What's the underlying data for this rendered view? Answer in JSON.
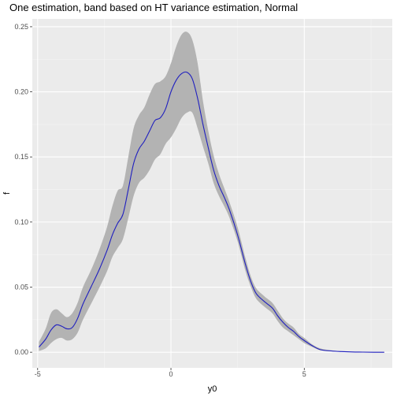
{
  "chart_data": {
    "type": "line",
    "title": "One estimation, band based on HT variance estimation, Normal",
    "xlabel": "y0",
    "ylabel": "f",
    "xlim": [
      -5.2,
      8.3
    ],
    "ylim": [
      -0.012,
      0.256
    ],
    "x_ticks": [
      -5,
      0,
      5
    ],
    "x_tick_labels": [
      "-5",
      "0",
      "5"
    ],
    "y_ticks": [
      0.0,
      0.05,
      0.1,
      0.15,
      0.2,
      0.25
    ],
    "y_tick_labels": [
      "0.00",
      "0.05",
      "0.10",
      "0.15",
      "0.20",
      "0.25"
    ],
    "grid": true,
    "legend": "none",
    "colors": {
      "panel": "#ebebeb",
      "grid_major": "#ffffff",
      "line": "#1f1fbf",
      "band": "#b3b3b3"
    },
    "series": [
      {
        "kind": "line",
        "x": [
          -4.95,
          -4.7,
          -4.5,
          -4.3,
          -4.1,
          -3.9,
          -3.7,
          -3.5,
          -3.3,
          -3.0,
          -2.7,
          -2.4,
          -2.2,
          -2.0,
          -1.8,
          -1.6,
          -1.4,
          -1.2,
          -1.0,
          -0.8,
          -0.6,
          -0.4,
          -0.2,
          0.0,
          0.2,
          0.4,
          0.6,
          0.8,
          1.0,
          1.2,
          1.4,
          1.6,
          1.8,
          2.0,
          2.2,
          2.5,
          2.8,
          3.0,
          3.2,
          3.5,
          3.8,
          4.0,
          4.2,
          4.4,
          4.6,
          4.8,
          5.0,
          5.3,
          5.6,
          6.0,
          6.4,
          6.8,
          7.2,
          7.6,
          8.0
        ],
        "y": [
          0.004,
          0.01,
          0.017,
          0.021,
          0.02,
          0.018,
          0.019,
          0.026,
          0.037,
          0.05,
          0.063,
          0.078,
          0.09,
          0.099,
          0.106,
          0.125,
          0.145,
          0.156,
          0.162,
          0.17,
          0.178,
          0.18,
          0.187,
          0.2,
          0.209,
          0.214,
          0.215,
          0.21,
          0.195,
          0.175,
          0.157,
          0.14,
          0.128,
          0.119,
          0.109,
          0.09,
          0.067,
          0.054,
          0.045,
          0.039,
          0.034,
          0.028,
          0.023,
          0.019,
          0.016,
          0.012,
          0.009,
          0.005,
          0.002,
          0.001,
          0.0005,
          0.0002,
          0.0001,
          0.0,
          0.0
        ]
      },
      {
        "kind": "band",
        "x": [
          -4.95,
          -4.7,
          -4.5,
          -4.3,
          -4.1,
          -3.9,
          -3.7,
          -3.5,
          -3.3,
          -3.0,
          -2.7,
          -2.4,
          -2.2,
          -2.0,
          -1.8,
          -1.6,
          -1.4,
          -1.2,
          -1.0,
          -0.8,
          -0.6,
          -0.4,
          -0.2,
          0.0,
          0.2,
          0.4,
          0.6,
          0.8,
          1.0,
          1.2,
          1.4,
          1.6,
          1.8,
          2.0,
          2.2,
          2.5,
          2.8,
          3.0,
          3.2,
          3.5,
          3.8,
          4.0,
          4.2,
          4.4,
          4.6,
          4.8,
          5.0,
          5.3,
          5.6,
          6.0,
          6.4,
          6.8,
          7.2,
          7.6,
          8.0
        ],
        "lower": [
          0.001,
          0.003,
          0.007,
          0.01,
          0.011,
          0.009,
          0.01,
          0.015,
          0.025,
          0.037,
          0.049,
          0.062,
          0.073,
          0.08,
          0.087,
          0.103,
          0.12,
          0.13,
          0.134,
          0.14,
          0.148,
          0.152,
          0.16,
          0.165,
          0.172,
          0.18,
          0.184,
          0.184,
          0.172,
          0.158,
          0.145,
          0.13,
          0.12,
          0.112,
          0.103,
          0.085,
          0.062,
          0.05,
          0.041,
          0.035,
          0.03,
          0.024,
          0.019,
          0.016,
          0.013,
          0.01,
          0.007,
          0.004,
          0.0015,
          0.0007,
          0.0003,
          0.0001,
          0.0,
          0.0,
          0.0
        ],
        "upper": [
          0.008,
          0.018,
          0.03,
          0.033,
          0.03,
          0.027,
          0.03,
          0.038,
          0.05,
          0.063,
          0.078,
          0.096,
          0.112,
          0.124,
          0.128,
          0.15,
          0.172,
          0.182,
          0.188,
          0.198,
          0.206,
          0.208,
          0.212,
          0.222,
          0.235,
          0.244,
          0.246,
          0.24,
          0.222,
          0.193,
          0.17,
          0.151,
          0.137,
          0.126,
          0.115,
          0.096,
          0.072,
          0.058,
          0.049,
          0.043,
          0.038,
          0.032,
          0.026,
          0.022,
          0.019,
          0.014,
          0.011,
          0.006,
          0.003,
          0.0015,
          0.0007,
          0.0003,
          0.0001,
          0.0,
          0.0
        ]
      }
    ]
  }
}
